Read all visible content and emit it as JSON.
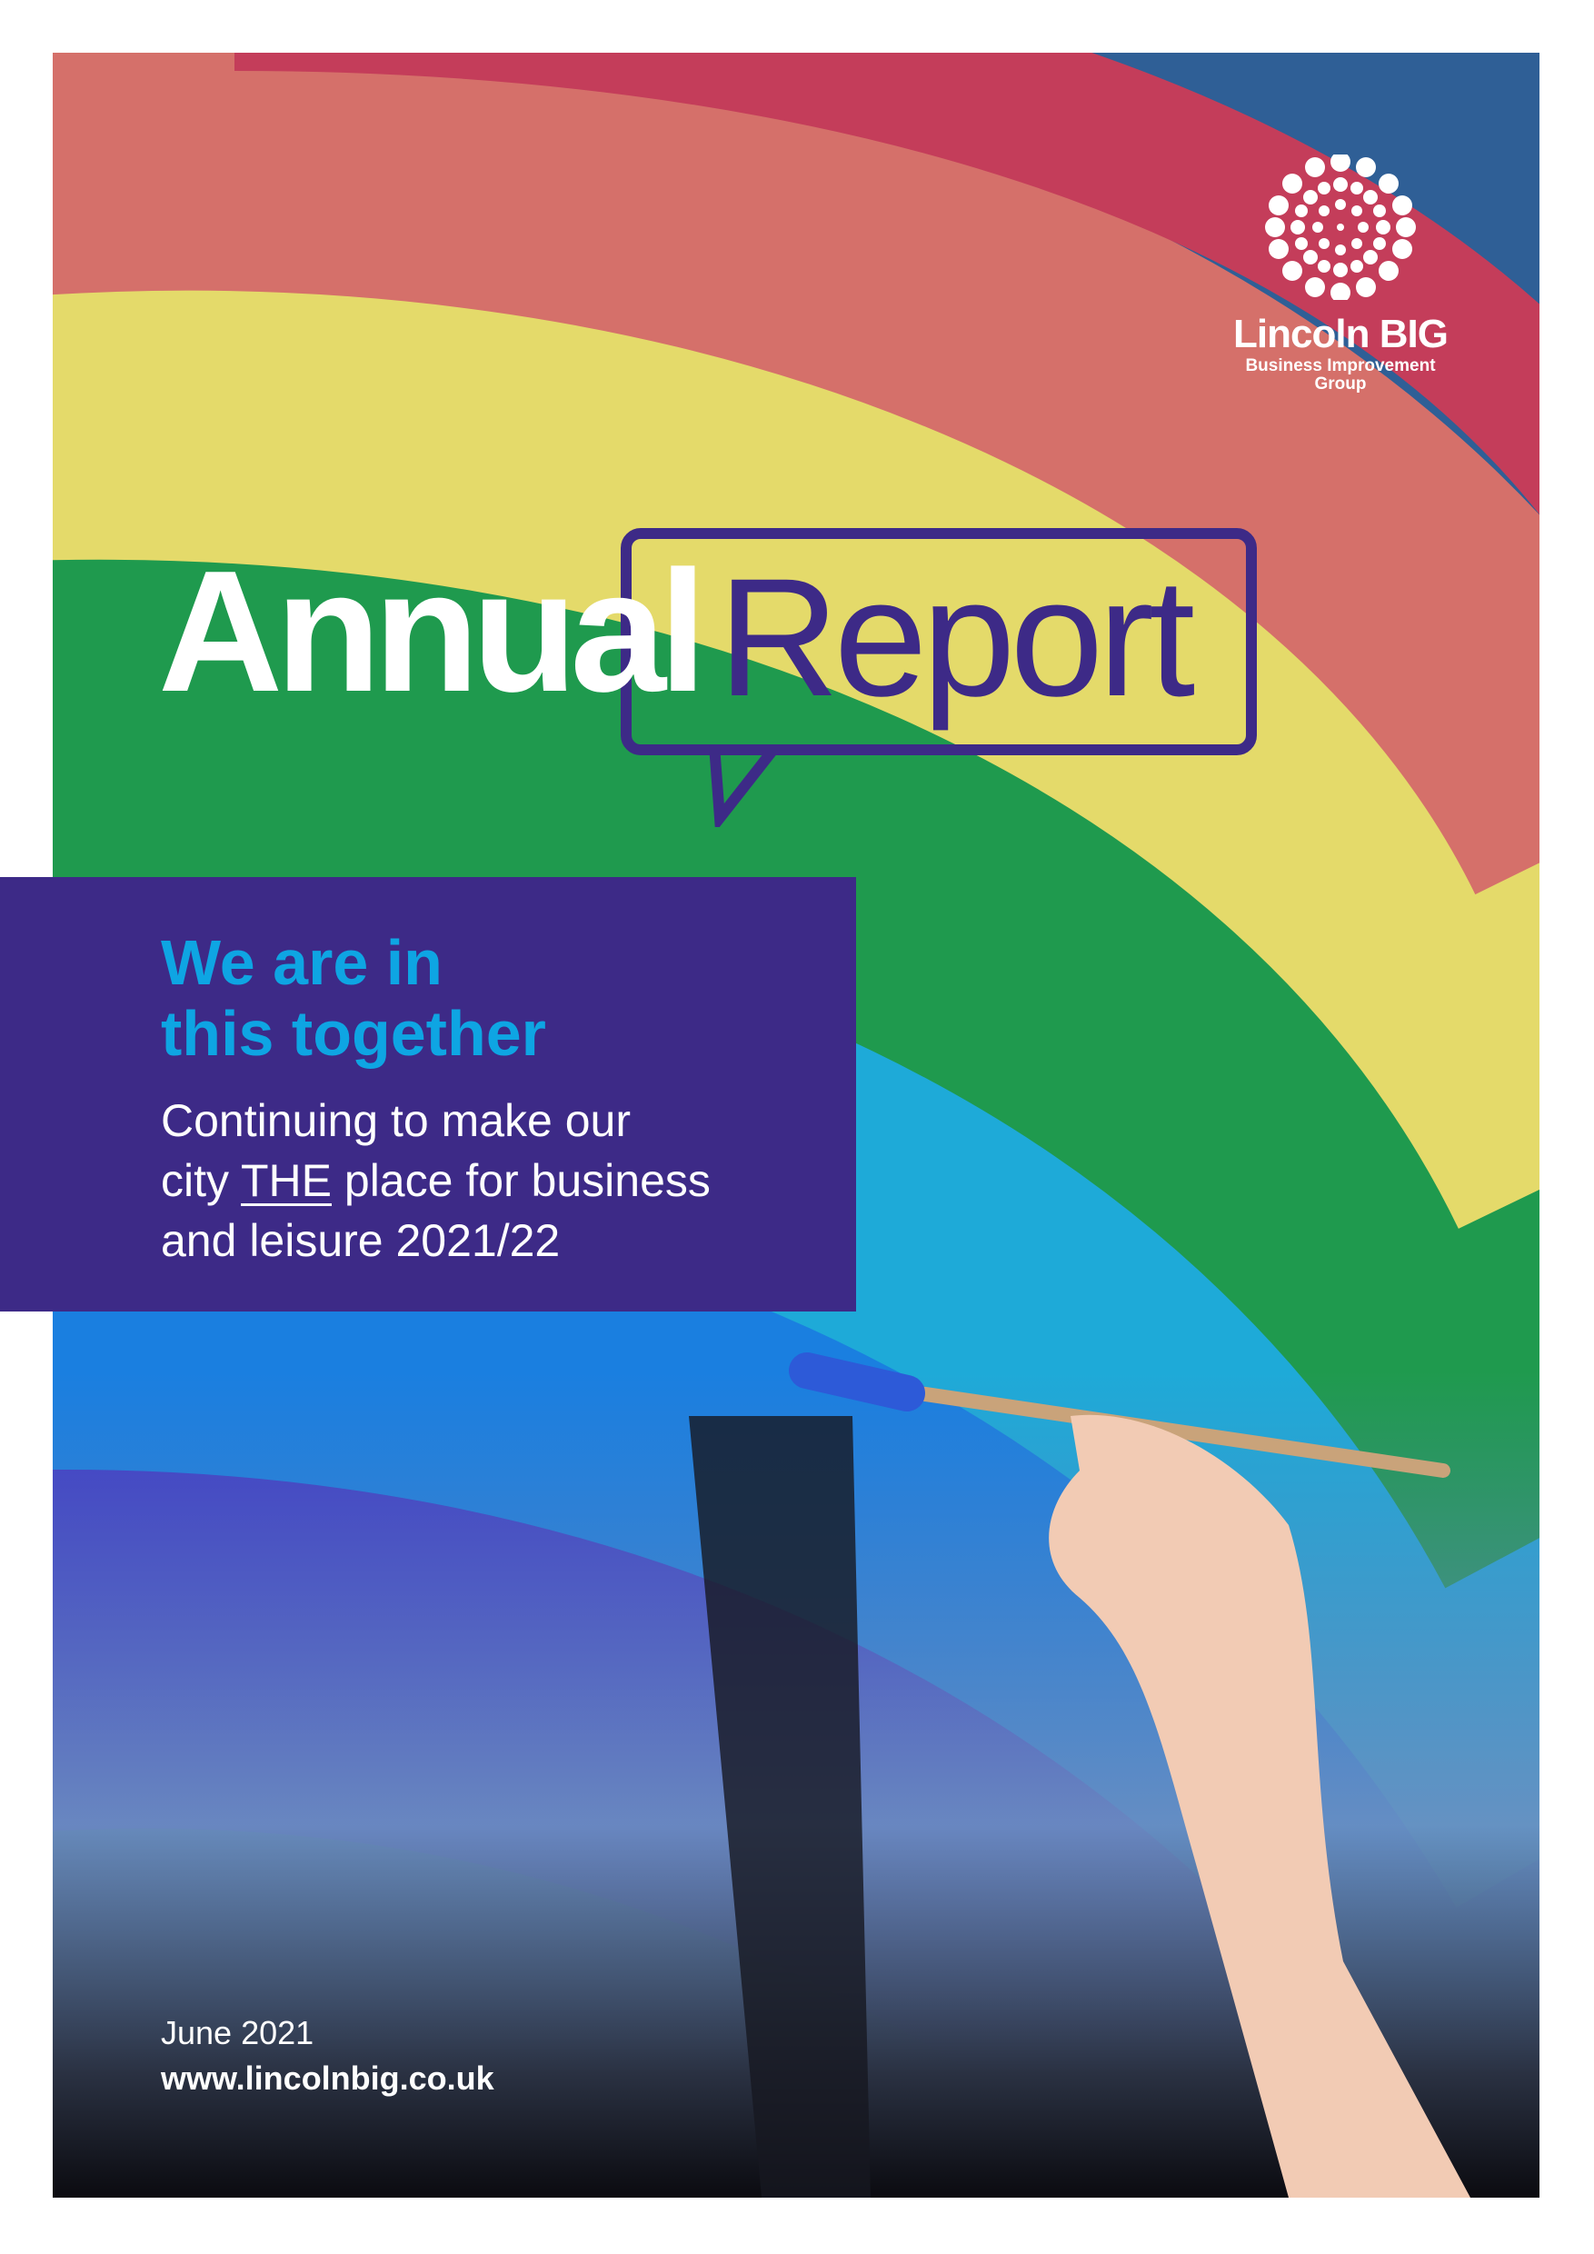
{
  "logo": {
    "name": "Lincoln BIG",
    "subtitle_line1": "Business Improvement",
    "subtitle_line2": "Group"
  },
  "title": {
    "part1": "Annual",
    "part2": "Report"
  },
  "panel": {
    "headline_line1": "We are in",
    "headline_line2": "this together",
    "sub_line1": "Continuing to make our",
    "sub_line2_pre": "city ",
    "sub_line2_emph": "THE",
    "sub_line2_post": " place for business",
    "sub_line3": "and leisure 2021/22"
  },
  "footer": {
    "date": "June 2021",
    "url": "www.lincolnbig.co.uk"
  },
  "colors": {
    "brand_purple": "#3d2a87",
    "headline_cyan": "#0ea5e3",
    "white": "#ffffff"
  }
}
